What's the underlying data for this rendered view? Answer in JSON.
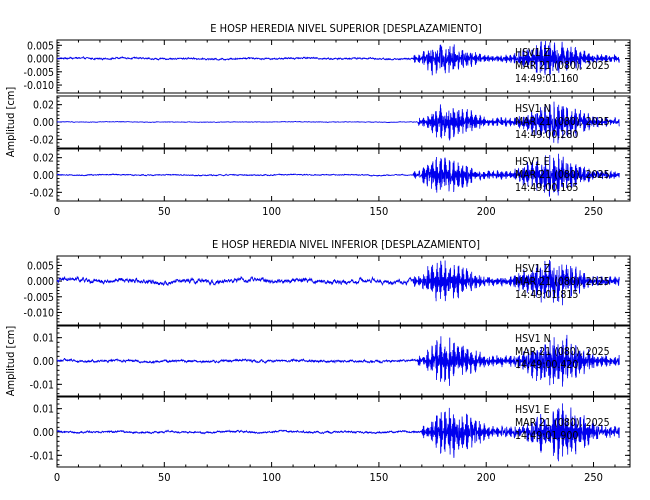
{
  "chart_data": [
    {
      "type": "line",
      "title": "E HOSP HEREDIA NIVEL SUPERIOR [DESPLAZAMIENTO]",
      "ylabel": "Amplitud [cm]",
      "xlim": [
        0,
        267
      ],
      "x_ticks": [
        0,
        50,
        100,
        150,
        200,
        250
      ],
      "line_color": "#0000ee",
      "panels": [
        {
          "id": "hsup-z",
          "ylim": [
            -0.013,
            0.007
          ],
          "y_ticks": [
            0.005,
            0.0,
            -0.005,
            -0.01
          ],
          "y_tick_labels": [
            "0.005",
            "0.000",
            "-0.005",
            "-0.010"
          ],
          "annotation": [
            "HSV1 Z",
            "MAR 21 (080), 2025",
            "14:49:01.160"
          ],
          "pre_noise": 0.0004,
          "onset": 166,
          "peak_amplitude": 0.0085
        },
        {
          "id": "hsup-n",
          "ylim": [
            -0.03,
            0.03
          ],
          "y_ticks": [
            0.02,
            0.0,
            -0.02
          ],
          "y_tick_labels": [
            "0.02",
            "0.00",
            "-0.02"
          ],
          "annotation": [
            "HSV1 N",
            "MAR 21 (080), 2025",
            "14:49:00.280"
          ],
          "pre_noise": 0.0004,
          "onset": 168,
          "peak_amplitude": 0.028
        },
        {
          "id": "hsup-e",
          "ylim": [
            -0.03,
            0.03
          ],
          "y_ticks": [
            0.02,
            0.0,
            -0.02
          ],
          "y_tick_labels": [
            "0.02",
            "0.00",
            "-0.02"
          ],
          "annotation": [
            "HSV1 E",
            "MAR 21 (080), 2025",
            "14:49:00.165"
          ],
          "pre_noise": 0.0008,
          "onset": 166,
          "peak_amplitude": 0.028
        }
      ]
    },
    {
      "type": "line",
      "title": "E HOSP HEREDIA NIVEL INFERIOR [DESPLAZAMIENTO]",
      "ylabel": "Amplitud [cm]",
      "xlim": [
        0,
        267
      ],
      "x_ticks": [
        0,
        50,
        100,
        150,
        200,
        250
      ],
      "line_color": "#0000ee",
      "panels": [
        {
          "id": "hinf-z",
          "ylim": [
            -0.014,
            0.008
          ],
          "y_ticks": [
            0.005,
            0.0,
            -0.005,
            -0.01
          ],
          "y_tick_labels": [
            "0.005",
            "0.000",
            "-0.005",
            "-0.010"
          ],
          "annotation": [
            "HSV1 Z",
            "MAR 21 (080), 2025",
            "14:49:01.815"
          ],
          "pre_noise": 0.0009,
          "onset": 166,
          "peak_amplitude": 0.009
        },
        {
          "id": "hinf-n",
          "ylim": [
            -0.015,
            0.015
          ],
          "y_ticks": [
            0.01,
            0.0,
            -0.01
          ],
          "y_tick_labels": [
            "0.01",
            "0.00",
            "-0.01"
          ],
          "annotation": [
            "HSV1 N",
            "MAR 21 (080), 2025",
            "14:49:00.420"
          ],
          "pre_noise": 0.0006,
          "onset": 168,
          "peak_amplitude": 0.0135
        },
        {
          "id": "hinf-e",
          "ylim": [
            -0.015,
            0.015
          ],
          "y_ticks": [
            0.01,
            0.0,
            -0.01
          ],
          "y_tick_labels": [
            "0.01",
            "0.00",
            "-0.01"
          ],
          "annotation": [
            "HSV1 E",
            "MAR 21 (080), 2025",
            "14:49:01.900"
          ],
          "pre_noise": 0.0005,
          "onset": 170,
          "peak_amplitude": 0.014
        }
      ]
    }
  ]
}
